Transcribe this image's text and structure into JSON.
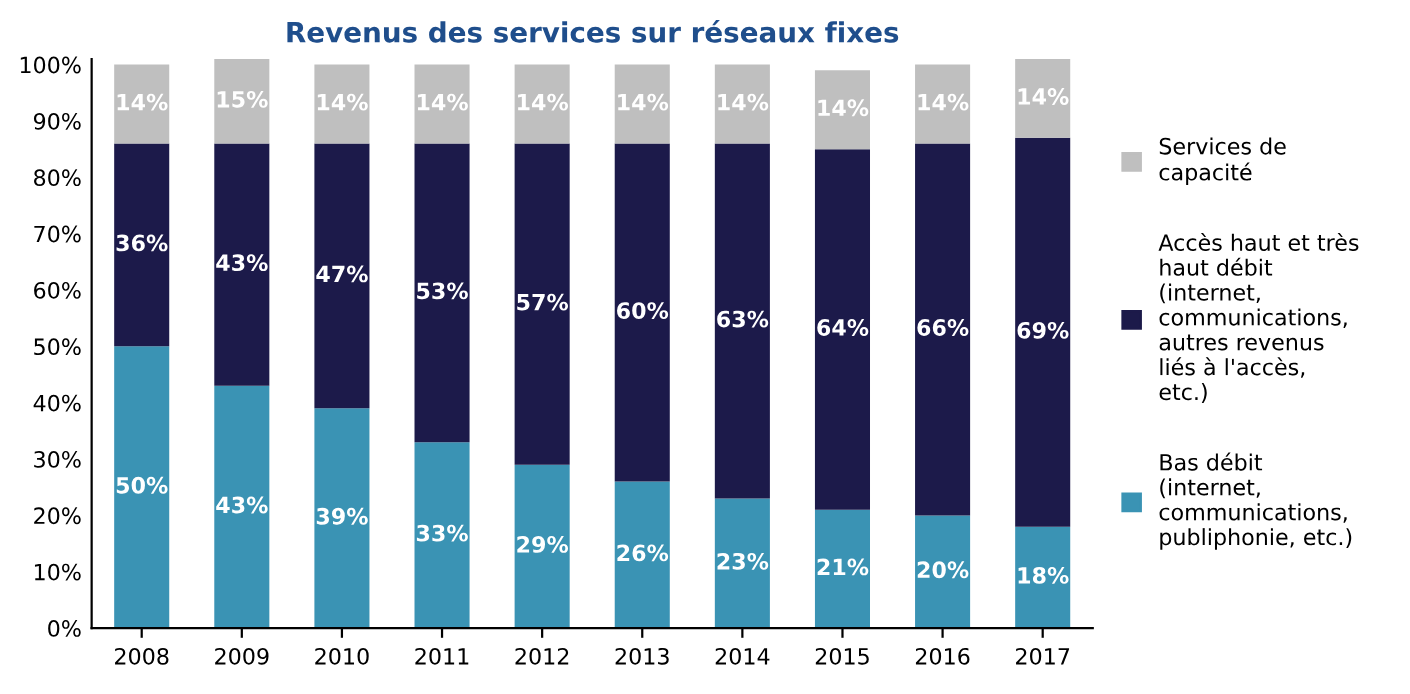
{
  "chart_data": {
    "type": "bar",
    "title": "Revenus des services sur réseaux fixes",
    "stacked": true,
    "categories": [
      "2008",
      "2009",
      "2010",
      "2011",
      "2012",
      "2013",
      "2014",
      "2015",
      "2016",
      "2017"
    ],
    "series": [
      {
        "name": "Bas débit (internet, communications, publiphonie, etc.)",
        "color": "#3a93b4",
        "values": [
          50,
          43,
          39,
          33,
          29,
          26,
          23,
          21,
          20,
          18
        ],
        "value_labels": [
          "50%",
          "43%",
          "39%",
          "33%",
          "29%",
          "26%",
          "23%",
          "21%",
          "20%",
          "18%"
        ]
      },
      {
        "name": "Accès haut et très haut débit (internet, communications, autres revenus liés à l'accès, etc.)",
        "color": "#1c1a4a",
        "values": [
          36,
          43,
          47,
          53,
          57,
          60,
          63,
          64,
          66,
          69
        ],
        "value_labels": [
          "36%",
          "43%",
          "47%",
          "53%",
          "57%",
          "60%",
          "63%",
          "64%",
          "66%",
          "69%"
        ]
      },
      {
        "name": "Services de capacité",
        "color": "#bfbfbf",
        "values": [
          14,
          15,
          14,
          14,
          14,
          14,
          14,
          14,
          14,
          14
        ],
        "value_labels": [
          "14%",
          "15%",
          "14%",
          "14%",
          "14%",
          "14%",
          "14%",
          "14%",
          "14%",
          "14%"
        ]
      }
    ],
    "ylim": [
      0,
      101
    ],
    "yticks": [
      {
        "value": 0,
        "label": "0%"
      },
      {
        "value": 10,
        "label": "10%"
      },
      {
        "value": 20,
        "label": "20%"
      },
      {
        "value": 30,
        "label": "30%"
      },
      {
        "value": 40,
        "label": "40%"
      },
      {
        "value": 50,
        "label": "50%"
      },
      {
        "value": 60,
        "label": "60%"
      },
      {
        "value": 70,
        "label": "70%"
      },
      {
        "value": 80,
        "label": "80%"
      },
      {
        "value": 90,
        "label": "90%"
      },
      {
        "value": 100,
        "label": "100%"
      }
    ],
    "legend": "right",
    "grid": false
  }
}
